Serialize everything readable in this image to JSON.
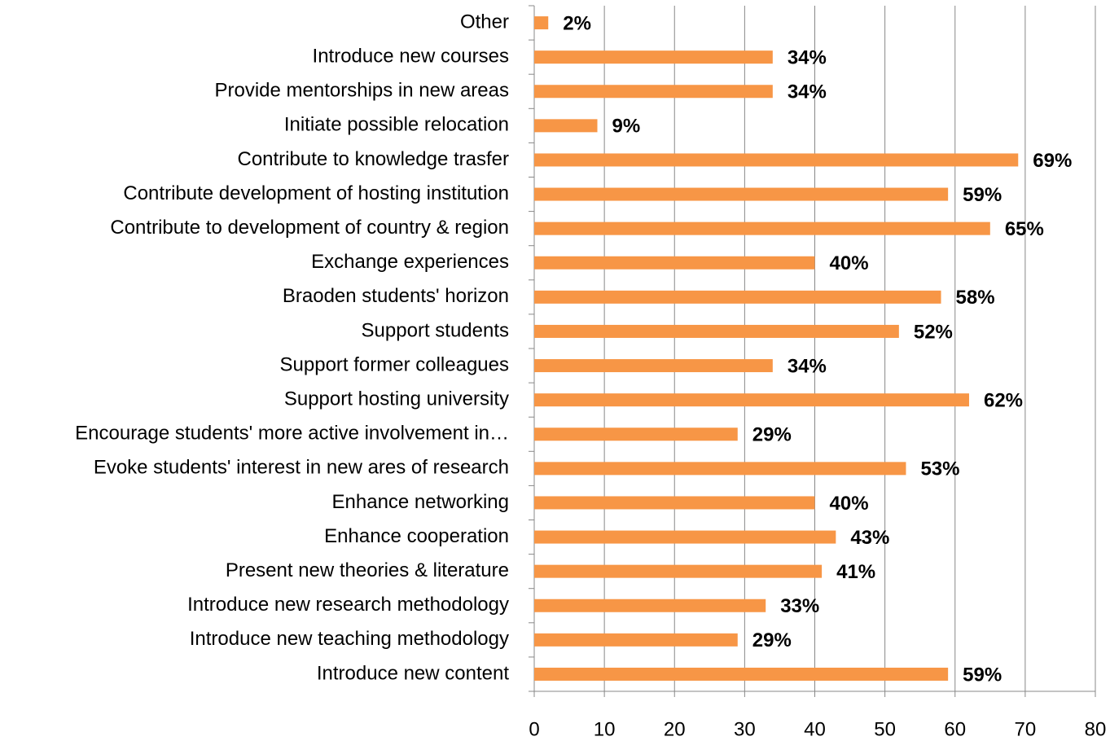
{
  "chart_data": {
    "type": "barh",
    "categories": [
      "Other",
      "Introduce new courses",
      "Provide mentorships in new areas",
      "Initiate possible relocation",
      "Contribute to knowledge trasfer",
      "Contribute development of hosting institution",
      "Contribute to development of country & region",
      "Exchange experiences",
      "Braoden students' horizon",
      "Support students",
      "Support former colleagues",
      "Support hosting university",
      "Encourage students' more active involvement in…",
      "Evoke students' interest in new ares of research",
      "Enhance networking",
      "Enhance cooperation",
      "Present new theories & literature",
      "Introduce new research methodology",
      "Introduce new teaching methodology",
      "Introduce new content"
    ],
    "values": [
      2,
      34,
      34,
      9,
      69,
      59,
      65,
      40,
      58,
      52,
      34,
      62,
      29,
      53,
      40,
      43,
      41,
      33,
      29,
      59
    ],
    "value_labels": [
      "2%",
      "34%",
      "34%",
      "9%",
      "69%",
      "59%",
      "65%",
      "40%",
      "58%",
      "52%",
      "34%",
      "62%",
      "29%",
      "53%",
      "40%",
      "43%",
      "41%",
      "33%",
      "29%",
      "59%"
    ],
    "color": "#f79646",
    "xlim": [
      0,
      80
    ],
    "xticks": [
      0,
      10,
      20,
      30,
      40,
      50,
      60,
      70,
      80
    ],
    "grid": true
  }
}
